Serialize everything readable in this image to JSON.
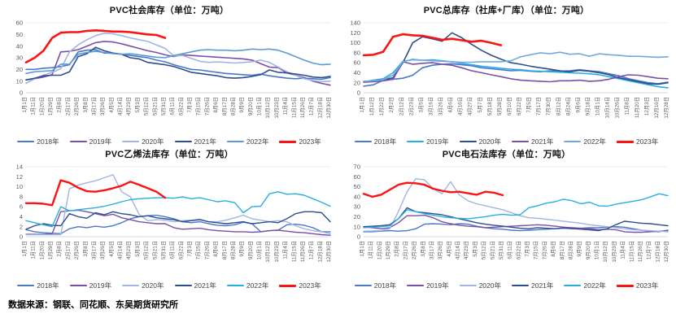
{
  "page": {
    "source_note": "数据来源：钢联、同花顺、东吴期货研究所"
  },
  "chart_data": [
    {
      "type": "line",
      "title": "PVC社会库存（单位：万吨）",
      "xlabel": "",
      "ylabel": "",
      "ylim": [
        0,
        60
      ],
      "yticks": [
        0,
        10,
        20,
        30,
        40,
        50,
        60
      ],
      "grid": false,
      "legend_position": "bottom",
      "categories": [
        "1月1日",
        "1月11日",
        "1月20日",
        "1月29日",
        "2月8日",
        "2月17日",
        "2月26日",
        "3月8日",
        "3月17日",
        "3月26日",
        "4月5日",
        "4月14日",
        "4月23日",
        "5月3日",
        "5月12日",
        "5月21日",
        "5月31日",
        "6月11日",
        "6月22日",
        "7月3日",
        "7月15日",
        "7月26日",
        "8月6日",
        "8月17日",
        "8月28日",
        "9月9日",
        "9月20日",
        "10月1日",
        "10月12日",
        "10月23日",
        "11月4日",
        "11月15日",
        "11月26日",
        "12月7日",
        "12月18日",
        "12月30日"
      ],
      "series": [
        {
          "name": "2018年",
          "color": "#4A77C9",
          "width": 1.6,
          "values": [
            20,
            20,
            21,
            21.5,
            22.5,
            24,
            35,
            36.5,
            37,
            34,
            34,
            33,
            32,
            31,
            30,
            28,
            26.5,
            24,
            22,
            20,
            19.5,
            18.5,
            17.5,
            16.5,
            16,
            15.5,
            15,
            16,
            14.5,
            13.5,
            12.5,
            12,
            12.5,
            12,
            11.5,
            13
          ]
        },
        {
          "name": "2019年",
          "color": "#7B4FA9",
          "width": 1.6,
          "values": [
            11,
            12,
            13.5,
            15.5,
            35,
            35.5,
            37,
            40,
            43,
            44,
            43.5,
            42,
            40,
            38,
            36,
            34.5,
            32.5,
            31,
            32.5,
            32,
            31.5,
            31,
            30.5,
            30,
            29.5,
            29,
            28,
            25,
            22,
            21.5,
            17,
            15,
            13,
            10,
            8,
            6.5
          ]
        },
        {
          "name": "2020年",
          "color": "#A0B5E2",
          "width": 1.6,
          "values": [
            8,
            12,
            15,
            17.5,
            20.5,
            35,
            41,
            45.5,
            49,
            51,
            50.5,
            49,
            47,
            45.5,
            44,
            41,
            38,
            31.5,
            32,
            29.5,
            27,
            26,
            26.5,
            26,
            25.5,
            26,
            26.5,
            28,
            26,
            22,
            18,
            15,
            12,
            10.5,
            9.5,
            10
          ]
        },
        {
          "name": "2021年",
          "color": "#2E4E8F",
          "width": 1.6,
          "values": [
            11,
            12.5,
            14.5,
            15,
            15,
            18,
            31,
            33.5,
            39,
            36,
            34,
            33,
            30,
            29,
            26,
            25,
            24,
            22.5,
            20,
            17.5,
            16.5,
            15.5,
            14.5,
            13,
            12.5,
            13,
            14,
            15.5,
            19.5,
            17.5,
            17,
            16,
            15,
            13.5,
            13,
            14
          ]
        },
        {
          "name": "2022年",
          "color": "#5B9BD5",
          "width": 1.6,
          "values": [
            16.5,
            18,
            18.5,
            19,
            24.5,
            24.5,
            33,
            34.5,
            35.5,
            34.5,
            33.5,
            33,
            33.5,
            32.5,
            31.5,
            30.5,
            30,
            32,
            33.5,
            35,
            36.5,
            37,
            36.5,
            36.5,
            36,
            36.5,
            37.5,
            37,
            37.5,
            36.5,
            34,
            31,
            28,
            25.5,
            24,
            24.5
          ]
        },
        {
          "name": "2023年",
          "color": "#FA1414",
          "width": 2.6,
          "values": [
            26,
            30,
            36,
            47,
            51.5,
            52,
            52,
            53,
            53.5,
            53,
            52.5,
            52.5,
            52,
            51,
            50,
            49.5,
            47
          ]
        }
      ]
    },
    {
      "type": "line",
      "title": "PVC总库存（社库+厂库）（单位：万吨）",
      "xlabel": "",
      "ylabel": "",
      "ylim": [
        0,
        140
      ],
      "yticks": [
        0,
        20,
        40,
        60,
        80,
        100,
        120,
        140
      ],
      "grid": false,
      "legend_position": "bottom",
      "categories": [
        "1月1日",
        "1月12日",
        "1月22日",
        "2月2日",
        "2月12日",
        "2月23日",
        "3月5日",
        "3月16日",
        "3月26日",
        "4月6日",
        "4月16日",
        "4月27日",
        "5月7日",
        "5月18日",
        "5月28日",
        "6月10日",
        "6月22日",
        "7月5日",
        "7月17日",
        "7月30日",
        "8月12日",
        "8月24日",
        "9月6日",
        "9月18日",
        "10月1日",
        "10月14日",
        "10月26日",
        "11月8日",
        "11月20日",
        "12月3日",
        "12月16日",
        "12月28日"
      ],
      "series": [
        {
          "name": "2018年",
          "color": "#4A77C9",
          "width": 1.6,
          "values": [
            13,
            16,
            25,
            27,
            29,
            35,
            50,
            55,
            57,
            58,
            56,
            54,
            50,
            48,
            46,
            44,
            45,
            43,
            42,
            44,
            43,
            44,
            46,
            44,
            42,
            38,
            34,
            28,
            24,
            20,
            18,
            21
          ]
        },
        {
          "name": "2019年",
          "color": "#29AEE4",
          "width": 1.6,
          "values": [
            22,
            25,
            28,
            40,
            63,
            66,
            65,
            66,
            64,
            62,
            59,
            56,
            53,
            51,
            49,
            47,
            46,
            44,
            43,
            42,
            41,
            40,
            39,
            38,
            36,
            32,
            28,
            24,
            20,
            16,
            12,
            10
          ]
        },
        {
          "name": "2020年",
          "color": "#2E4E8F",
          "width": 1.6,
          "values": [
            22,
            24,
            26,
            30,
            60,
            100,
            112,
            108,
            103,
            120,
            110,
            97,
            85,
            75,
            67,
            60,
            57,
            53,
            50,
            47,
            44,
            42,
            45,
            43,
            40,
            36,
            30,
            26,
            22,
            18,
            17,
            20
          ]
        },
        {
          "name": "2021年",
          "color": "#7B4FA9",
          "width": 1.6,
          "values": [
            21,
            22,
            24,
            27,
            62,
            57,
            59,
            60,
            57,
            55,
            50,
            44,
            40,
            36,
            32,
            28,
            25,
            24,
            23,
            22,
            24,
            24,
            25,
            23,
            24,
            27,
            32,
            36,
            35,
            32,
            29,
            28
          ]
        },
        {
          "name": "2022年",
          "color": "#74A9DE",
          "width": 1.6,
          "values": [
            23,
            24,
            26,
            35,
            62,
            67,
            65,
            64,
            63,
            62,
            61,
            61,
            62,
            62,
            62,
            64,
            72,
            76,
            80,
            78,
            81,
            77,
            78,
            73,
            78,
            76,
            75,
            73,
            73,
            72,
            71,
            72
          ]
        },
        {
          "name": "2023年",
          "color": "#FA1414",
          "width": 2.6,
          "values": [
            75,
            76,
            82,
            112,
            117,
            115,
            114,
            110,
            106,
            108,
            105,
            102,
            104,
            100,
            95
          ]
        }
      ]
    },
    {
      "type": "line",
      "title": "PVC乙烯法库存（单位：万吨）",
      "xlabel": "",
      "ylabel": "",
      "ylim": [
        0,
        14
      ],
      "yticks": [
        0,
        2,
        4,
        6,
        8,
        10,
        12,
        14
      ],
      "grid": false,
      "legend_position": "bottom",
      "categories": [
        "1月1日",
        "1月11日",
        "1月20日",
        "1月29日",
        "2月8日",
        "2月17日",
        "2月26日",
        "3月8日",
        "3月17日",
        "3月26日",
        "4月5日",
        "4月14日",
        "4月23日",
        "5月3日",
        "5月12日",
        "5月21日",
        "5月31日",
        "6月11日",
        "6月22日",
        "7月3日",
        "7月15日",
        "7月26日",
        "8月6日",
        "8月17日",
        "8月28日",
        "9月9日",
        "9月20日",
        "10月1日",
        "10月12日",
        "10月23日",
        "11月4日",
        "11月15日",
        "11月26日",
        "12月7日",
        "12月18日",
        "12月30日"
      ],
      "series": [
        {
          "name": "2018年",
          "color": "#4A77C9",
          "width": 1.4,
          "values": [
            1.4,
            1,
            0.8,
            0.7,
            0.6,
            1.6,
            2,
            1.8,
            2.1,
            1.9,
            2.2,
            2.8,
            3.6,
            4,
            4.2,
            4.3,
            4,
            3.6,
            3,
            2.8,
            3,
            2.6,
            2.3,
            2.2,
            2.4,
            2.9,
            2.6,
            1,
            1.2,
            1.3,
            2.4,
            2.5,
            2.3,
            1.8,
            1,
            1
          ]
        },
        {
          "name": "2019年",
          "color": "#7B4FA9",
          "width": 1.4,
          "values": [
            0.5,
            0.5,
            0.5,
            0.6,
            5,
            5.2,
            5.3,
            5,
            4.6,
            4.2,
            4.5,
            3.8,
            3.4,
            3,
            2.8,
            2.6,
            2.6,
            1.8,
            1.5,
            1.6,
            1.7,
            1.4,
            1.2,
            1.1,
            1,
            1,
            0.9,
            1,
            1.2,
            1.3,
            1.1,
            0.9,
            0.8,
            0.6,
            0.4,
            0.3
          ]
        },
        {
          "name": "2020年",
          "color": "#A0B5E2",
          "width": 1.4,
          "values": [
            0.4,
            0.4,
            0.4,
            0.4,
            0.4,
            9.6,
            10.3,
            10.8,
            11.2,
            11.8,
            12.4,
            9,
            8,
            4.5,
            3.2,
            3.4,
            3.3,
            3,
            3.2,
            3.3,
            3.5,
            3,
            3,
            3.3,
            3.8,
            4.3,
            3.6,
            3.3,
            3,
            3.2,
            3,
            2.2,
            1.6,
            1.2,
            1,
            0.6
          ]
        },
        {
          "name": "2021年",
          "color": "#2E4E8F",
          "width": 1.4,
          "values": [
            1.5,
            2.2,
            2.6,
            2.3,
            2.2,
            4.6,
            4,
            3.7,
            4.8,
            4.4,
            5,
            4.6,
            4.4,
            4,
            4.2,
            3.8,
            3.6,
            3.4,
            3,
            3.2,
            3.4,
            3,
            2.8,
            2.6,
            2.8,
            3,
            2.6,
            2.8,
            3,
            2.8,
            3.6,
            4.6,
            5,
            5,
            4.8,
            3
          ]
        },
        {
          "name": "2022年",
          "color": "#29AEE4",
          "width": 1.4,
          "values": [
            3.2,
            2.8,
            2.4,
            2,
            6,
            5.2,
            5.4,
            5.6,
            5.8,
            6.1,
            6.5,
            7,
            7.4,
            7.6,
            7.7,
            7.8,
            7.8,
            7.7,
            8,
            7.6,
            7.8,
            7.4,
            7,
            7.2,
            6.8,
            4.8,
            6,
            6.1,
            8.6,
            9,
            8.5,
            8.6,
            8.3,
            7.6,
            6.9,
            6.1
          ]
        },
        {
          "name": "2023年",
          "color": "#FA1414",
          "width": 2.4,
          "values": [
            6.7,
            6.7,
            6.6,
            6.3,
            11.3,
            10.8,
            9.8,
            9.1,
            9,
            9.3,
            9.7,
            10.2,
            11,
            10.4,
            9.7,
            9,
            7.8
          ]
        }
      ]
    },
    {
      "type": "line",
      "title": "PVC电石法库存（单位：万吨）",
      "xlabel": "",
      "ylabel": "",
      "ylim": [
        0,
        70
      ],
      "yticks": [
        0,
        10,
        20,
        30,
        40,
        50,
        60,
        70
      ],
      "grid": false,
      "legend_position": "bottom",
      "categories": [
        "1月1日",
        "1月11日",
        "1月20日",
        "1月29日",
        "2月8日",
        "2月17日",
        "2月26日",
        "3月8日",
        "3月17日",
        "3月26日",
        "4月5日",
        "4月14日",
        "4月23日",
        "5月3日",
        "5月12日",
        "5月21日",
        "5月31日",
        "6月11日",
        "6月22日",
        "7月3日",
        "7月15日",
        "7月26日",
        "8月6日",
        "8月17日",
        "8月28日",
        "9月9日",
        "9月20日",
        "10月1日",
        "10月12日",
        "10月23日",
        "11月4日",
        "11月15日",
        "11月26日",
        "12月7日",
        "12月18日",
        "12月30日"
      ],
      "series": [
        {
          "name": "2018年",
          "color": "#4A77C9",
          "width": 1.4,
          "values": [
            5,
            5,
            5.5,
            6,
            5.5,
            6,
            8,
            12.5,
            13,
            12.5,
            12,
            13,
            12.5,
            10.5,
            9,
            8,
            7.5,
            6.5,
            6,
            6.5,
            7,
            7.5,
            8,
            8.5,
            8,
            8.5,
            9,
            9,
            9.5,
            10,
            9.5,
            8,
            6.5,
            5.5,
            5,
            6.5
          ]
        },
        {
          "name": "2019年",
          "color": "#7B4FA9",
          "width": 1.4,
          "values": [
            10,
            9,
            8,
            9,
            14,
            21,
            21,
            21.5,
            19,
            15,
            13,
            11.5,
            10.5,
            10,
            9,
            9.5,
            10,
            10.5,
            11,
            11.5,
            12,
            11.5,
            10.5,
            9.5,
            9,
            8.5,
            8,
            7,
            7.5,
            7,
            5,
            4.5,
            4.5,
            5,
            5.5,
            6
          ]
        },
        {
          "name": "2020年",
          "color": "#A0B5E2",
          "width": 1.4,
          "values": [
            5.5,
            5.8,
            6,
            8,
            25,
            45,
            58,
            57,
            48,
            43,
            55,
            42,
            36,
            33,
            31,
            29,
            27,
            24,
            21,
            19,
            18.5,
            17.5,
            16.5,
            15.5,
            14.5,
            13.5,
            12,
            11,
            10,
            9,
            8,
            7,
            6.5,
            6,
            5.5,
            5
          ]
        },
        {
          "name": "2021年",
          "color": "#2E4E8F",
          "width": 1.4,
          "values": [
            10,
            10.5,
            11,
            12,
            18,
            29,
            25,
            24,
            23,
            22,
            20,
            18,
            16,
            14,
            12.5,
            11.5,
            10.5,
            9.5,
            8.5,
            8,
            9,
            8.5,
            8,
            8.8,
            8.2,
            7.5,
            6.8,
            6,
            8,
            12,
            15.5,
            14.5,
            13.5,
            13,
            12,
            11
          ]
        },
        {
          "name": "2022年",
          "color": "#29AEE4",
          "width": 1.4,
          "values": [
            9,
            9.5,
            10,
            11,
            18,
            27,
            25,
            23,
            21.5,
            20,
            19,
            18.5,
            18,
            19,
            20,
            21.5,
            22.5,
            21.5,
            22,
            29,
            31,
            33.5,
            35,
            37.5,
            36,
            33,
            34.5,
            31,
            30.5,
            32.5,
            34,
            35.5,
            37,
            40,
            43,
            41
          ]
        },
        {
          "name": "2023年",
          "color": "#FA1414",
          "width": 2.4,
          "values": [
            43,
            40,
            42,
            47,
            52,
            54,
            53.5,
            52,
            48,
            46,
            44.5,
            45,
            43.5,
            42,
            45,
            44,
            41.5
          ]
        }
      ]
    }
  ]
}
